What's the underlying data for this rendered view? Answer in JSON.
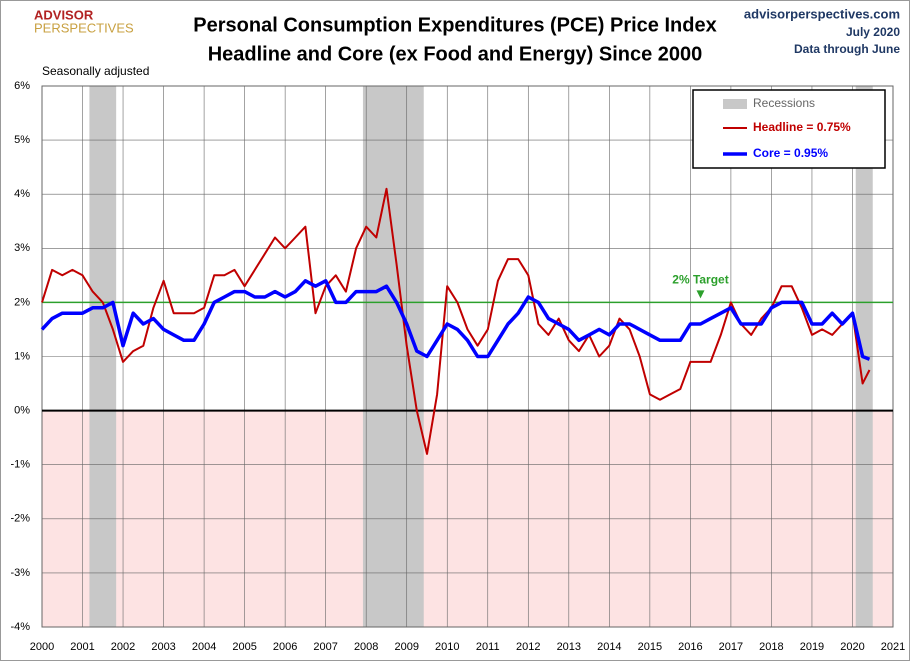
{
  "chart_data": {
    "type": "line",
    "title": "Personal Consumption Expenditures (PCE) Price Index",
    "subtitle": "Headline and Core (ex Food and Energy) Since 2000",
    "logo": [
      "ADVISOR",
      "PERSPECTIVES"
    ],
    "source": [
      "advisorperspectives.com",
      "July 2020",
      "Data through June"
    ],
    "note": "Seasonally adjusted",
    "target": 2,
    "target_label": "2% Target",
    "target_color": "#2ca02c",
    "recession_label": "Recessions",
    "recession_color": "#c8c8c8",
    "recessions": [
      [
        2001.17,
        2001.83
      ],
      [
        2007.92,
        2009.42
      ],
      [
        2020.08,
        2020.5
      ]
    ],
    "x": [
      2000,
      2000.25,
      2000.5,
      2000.75,
      2001,
      2001.25,
      2001.5,
      2001.75,
      2002,
      2002.25,
      2002.5,
      2002.75,
      2003,
      2003.25,
      2003.5,
      2003.75,
      2004,
      2004.25,
      2004.5,
      2004.75,
      2005,
      2005.25,
      2005.5,
      2005.75,
      2006,
      2006.25,
      2006.5,
      2006.75,
      2007,
      2007.25,
      2007.5,
      2007.75,
      2008,
      2008.25,
      2008.5,
      2008.75,
      2009,
      2009.25,
      2009.5,
      2009.75,
      2010,
      2010.25,
      2010.5,
      2010.75,
      2011,
      2011.25,
      2011.5,
      2011.75,
      2012,
      2012.25,
      2012.5,
      2012.75,
      2013,
      2013.25,
      2013.5,
      2013.75,
      2014,
      2014.25,
      2014.5,
      2014.75,
      2015,
      2015.25,
      2015.5,
      2015.75,
      2016,
      2016.25,
      2016.5,
      2016.75,
      2017,
      2017.25,
      2017.5,
      2017.75,
      2018,
      2018.25,
      2018.5,
      2018.75,
      2019,
      2019.25,
      2019.5,
      2019.75,
      2020,
      2020.25,
      2020.42
    ],
    "series": [
      {
        "name": "Headline = 0.75%",
        "color": "#c00000",
        "width": 2,
        "values": [
          2.0,
          2.6,
          2.5,
          2.6,
          2.5,
          2.2,
          2.0,
          1.5,
          0.9,
          1.1,
          1.2,
          1.9,
          2.4,
          1.8,
          1.8,
          1.8,
          1.9,
          2.5,
          2.5,
          2.6,
          2.3,
          2.6,
          2.9,
          3.2,
          3.0,
          3.2,
          3.4,
          1.8,
          2.3,
          2.5,
          2.2,
          3.0,
          3.4,
          3.2,
          4.1,
          2.7,
          1.2,
          0.0,
          -0.8,
          0.3,
          2.3,
          2.0,
          1.5,
          1.2,
          1.5,
          2.4,
          2.8,
          2.8,
          2.5,
          1.6,
          1.4,
          1.7,
          1.3,
          1.1,
          1.4,
          1.0,
          1.2,
          1.7,
          1.5,
          1.0,
          0.3,
          0.2,
          0.3,
          0.4,
          0.9,
          0.9,
          0.9,
          1.4,
          2.0,
          1.6,
          1.4,
          1.7,
          1.9,
          2.3,
          2.3,
          1.9,
          1.4,
          1.5,
          1.4,
          1.6,
          1.8,
          0.5,
          0.75
        ]
      },
      {
        "name": "Core = 0.95%",
        "color": "#0000ff",
        "width": 3.5,
        "values": [
          1.5,
          1.7,
          1.8,
          1.8,
          1.8,
          1.9,
          1.9,
          2.0,
          1.2,
          1.8,
          1.6,
          1.7,
          1.5,
          1.4,
          1.3,
          1.3,
          1.6,
          2.0,
          2.1,
          2.2,
          2.2,
          2.1,
          2.1,
          2.2,
          2.1,
          2.2,
          2.4,
          2.3,
          2.4,
          2.0,
          2.0,
          2.2,
          2.2,
          2.2,
          2.3,
          2.0,
          1.6,
          1.1,
          1.0,
          1.3,
          1.6,
          1.5,
          1.3,
          1.0,
          1.0,
          1.3,
          1.6,
          1.8,
          2.1,
          2.0,
          1.7,
          1.6,
          1.5,
          1.3,
          1.4,
          1.5,
          1.4,
          1.6,
          1.6,
          1.5,
          1.4,
          1.3,
          1.3,
          1.3,
          1.6,
          1.6,
          1.7,
          1.8,
          1.9,
          1.6,
          1.6,
          1.6,
          1.9,
          2.0,
          2.0,
          2.0,
          1.6,
          1.6,
          1.8,
          1.6,
          1.8,
          1.0,
          0.95
        ]
      }
    ],
    "xlim": [
      2000,
      2021
    ],
    "xticks": [
      2000,
      2001,
      2002,
      2003,
      2004,
      2005,
      2006,
      2007,
      2008,
      2009,
      2010,
      2011,
      2012,
      2013,
      2014,
      2015,
      2016,
      2017,
      2018,
      2019,
      2020,
      2021
    ],
    "ylim": [
      -4,
      6
    ],
    "yticks": [
      {
        "value": -4,
        "label": "-4%"
      },
      {
        "value": -3,
        "label": "-3%"
      },
      {
        "value": -2,
        "label": "-2%"
      },
      {
        "value": -1,
        "label": "-1%"
      },
      {
        "value": 0,
        "label": "0%"
      },
      {
        "value": 1,
        "label": "1%"
      },
      {
        "value": 2,
        "label": "2%"
      },
      {
        "value": 3,
        "label": "3%"
      },
      {
        "value": 4,
        "label": "4%"
      },
      {
        "value": 5,
        "label": "5%"
      },
      {
        "value": 6,
        "label": "6%"
      }
    ],
    "grid": true,
    "negative_fill": "#fde3e3",
    "legend": "upper right"
  }
}
